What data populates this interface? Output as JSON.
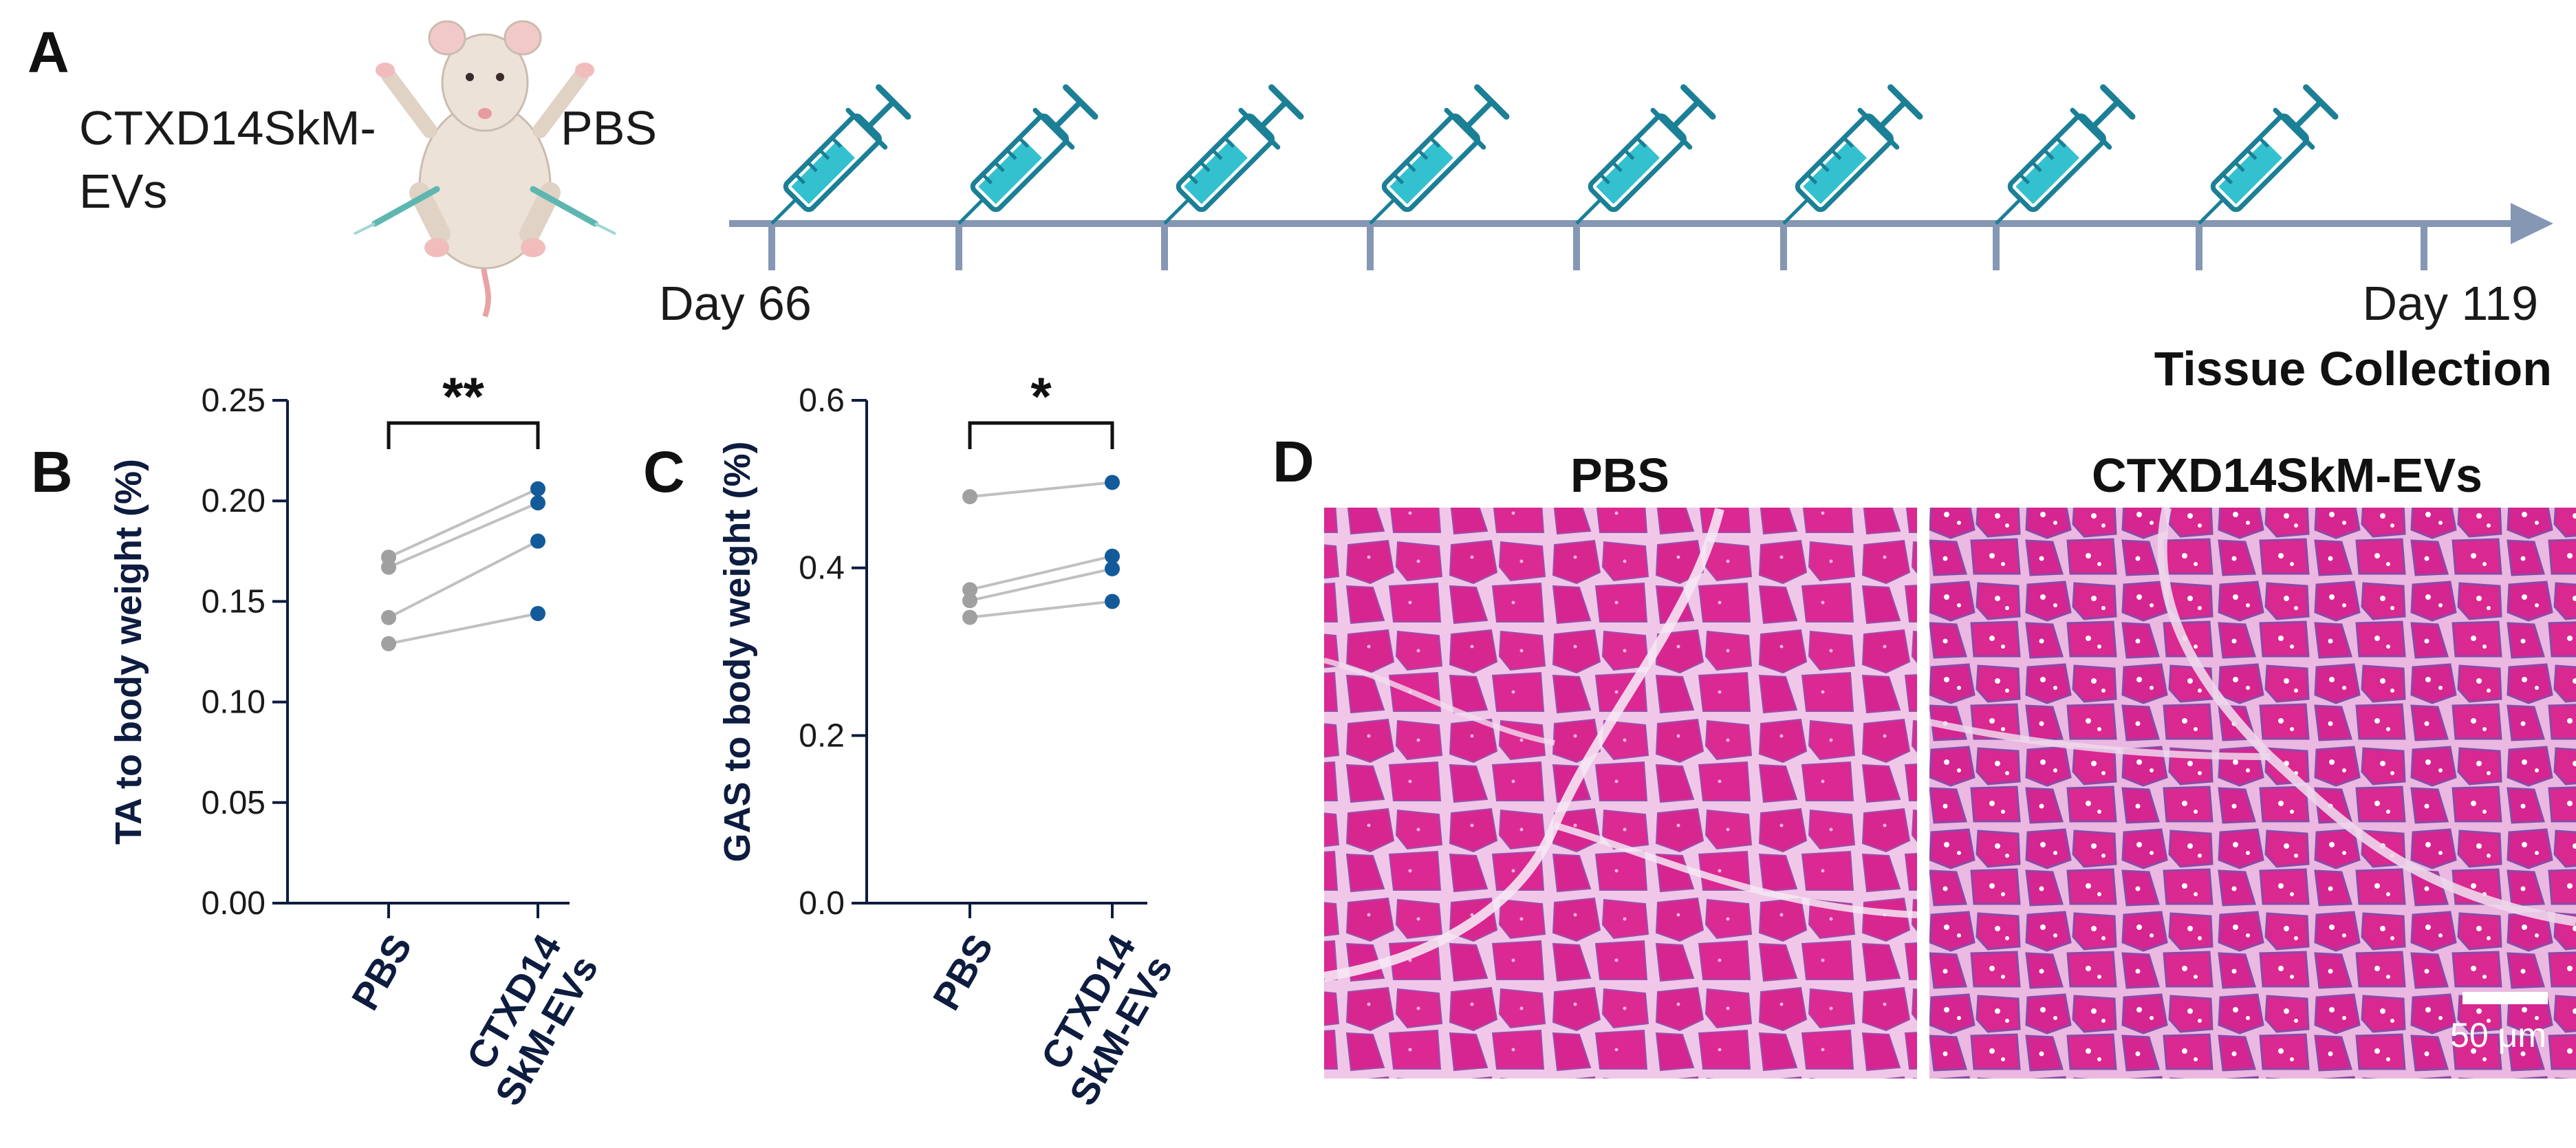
{
  "panel_a": {
    "label": "A",
    "left_treatment": "CTXD14SkM-",
    "left_treatment_2": "EVs",
    "right_treatment": "PBS",
    "start_label": "Day 66",
    "end_label": "Day 119",
    "end_sublabel": "Tissue Collection",
    "injection_count": 8,
    "colors": {
      "timeline": "#8597b3",
      "syringe_outline": "#1b7f96",
      "syringe_fill": "#33c1cf"
    }
  },
  "panel_b": {
    "label": "B"
  },
  "panel_c": {
    "label": "C"
  },
  "panel_d": {
    "label": "D",
    "left_title": "PBS",
    "right_title": "CTXD14SkM-EVs",
    "scalebar_label": "50 μm",
    "colors": {
      "tissue": "#d8268f",
      "stroma": "#f1c6e7",
      "fiber_edge": "#8d4ba6"
    }
  },
  "chart_data": [
    {
      "type": "scatter",
      "ylabel": "TA to body weight (%)",
      "categories": [
        "PBS",
        "CTXD14\nSkM-EVs"
      ],
      "category_lines": [
        [
          "PBS"
        ],
        [
          "CTXD14",
          "SkM-EVs"
        ]
      ],
      "ylim": [
        0,
        0.25
      ],
      "yticks": [
        0.0,
        0.05,
        0.1,
        0.15,
        0.2,
        0.25
      ],
      "ytick_labels": [
        "0.00",
        "0.05",
        "0.10",
        "0.15",
        "0.20",
        "0.25"
      ],
      "pairs": [
        [
          0.172,
          0.206
        ],
        [
          0.167,
          0.199
        ],
        [
          0.142,
          0.18
        ],
        [
          0.129,
          0.144
        ]
      ],
      "significance": "**",
      "grid": false,
      "colors": {
        "pbs": "#a0a0a0",
        "evs": "#135a9b",
        "axis": "#0d1c3f",
        "pair_line": "#c0c0c0"
      }
    },
    {
      "type": "scatter",
      "ylabel": "GAS to body weight (%)",
      "categories": [
        "PBS",
        "CTXD14\nSkM-EVs"
      ],
      "category_lines": [
        [
          "PBS"
        ],
        [
          "CTXD14",
          "SkM-EVs"
        ]
      ],
      "ylim": [
        0,
        0.6
      ],
      "yticks": [
        0.0,
        0.2,
        0.4,
        0.6
      ],
      "ytick_labels": [
        "0.0",
        "0.2",
        "0.4",
        "0.6"
      ],
      "pairs": [
        [
          0.485,
          0.502
        ],
        [
          0.374,
          0.414
        ],
        [
          0.361,
          0.399
        ],
        [
          0.341,
          0.36
        ]
      ],
      "significance": "*",
      "grid": false,
      "colors": {
        "pbs": "#a0a0a0",
        "evs": "#135a9b",
        "axis": "#0d1c3f",
        "pair_line": "#c0c0c0"
      }
    }
  ]
}
